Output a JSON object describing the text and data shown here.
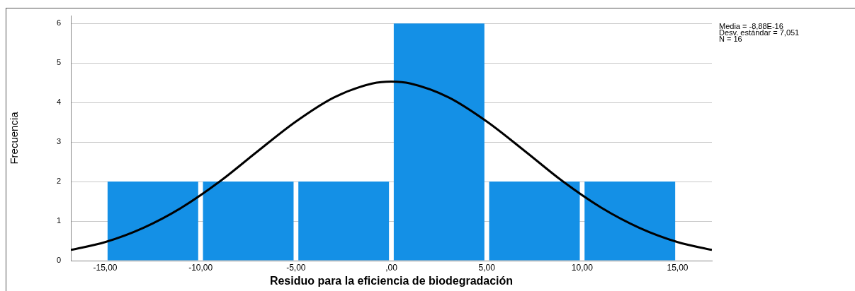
{
  "chart_data": {
    "type": "histogram",
    "xlabel": "Residuo para la eficiencia de biodegradación",
    "ylabel": "Frecuencia",
    "bins": [
      -15,
      -10,
      -5,
      0,
      5,
      10,
      15
    ],
    "values": [
      2,
      2,
      2,
      6,
      2,
      2
    ],
    "color": "#1490e6",
    "series": [
      {
        "type": "line",
        "color": "#000000",
        "x": [
          -16.8,
          -15,
          -13,
          -11,
          -9,
          -7,
          -5,
          -3,
          -1,
          0,
          1,
          3,
          5,
          7,
          9,
          11,
          13,
          15,
          16.8
        ],
        "values": [
          0.27,
          0.47,
          0.83,
          1.34,
          2.0,
          2.77,
          3.52,
          4.13,
          4.48,
          4.53,
          4.48,
          4.13,
          3.52,
          2.77,
          2.0,
          1.34,
          0.83,
          0.47,
          0.27
        ]
      }
    ],
    "xlim": [
      -16.8,
      16.8
    ],
    "ylim": [
      0,
      6.2
    ],
    "xticks": [
      {
        "value": -15,
        "label": "-15,00"
      },
      {
        "value": -10,
        "label": "-10,00"
      },
      {
        "value": -5,
        "label": "-5,00"
      },
      {
        "value": 0,
        "label": ",00"
      },
      {
        "value": 5,
        "label": "5,00"
      },
      {
        "value": 10,
        "label": "10,00"
      },
      {
        "value": 15,
        "label": "15,00"
      }
    ],
    "yticks": [
      0,
      1,
      2,
      3,
      4,
      5,
      6
    ],
    "grid": "y",
    "legend": false,
    "marker": "none",
    "annotations": [
      "Media = -8,88E-16",
      "Desv. estándar = 7,051",
      "N = 16"
    ]
  }
}
